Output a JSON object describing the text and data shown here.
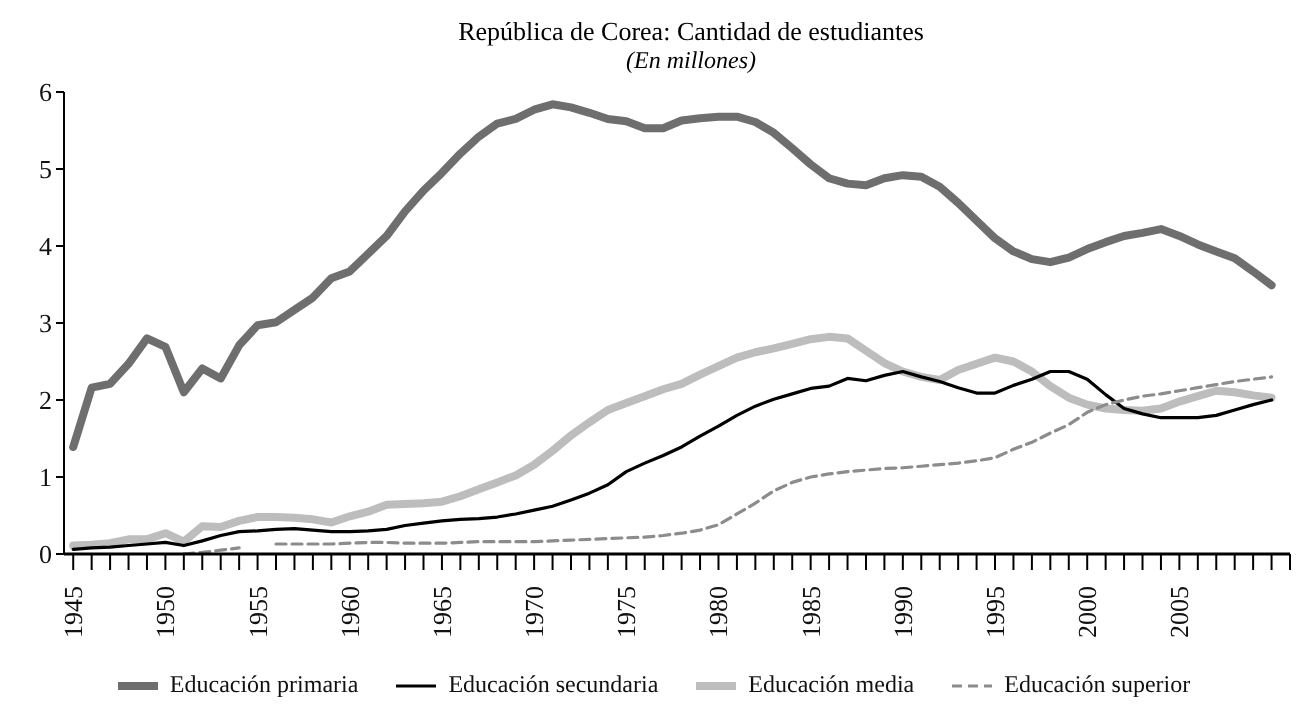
{
  "chart_data": {
    "type": "line",
    "title": "República de Corea: Cantidad de estudiantes",
    "subtitle": "(En millones)",
    "x": [
      1945,
      1946,
      1947,
      1948,
      1949,
      1950,
      1951,
      1952,
      1953,
      1954,
      1955,
      1956,
      1957,
      1958,
      1959,
      1960,
      1961,
      1962,
      1963,
      1964,
      1965,
      1966,
      1967,
      1968,
      1969,
      1970,
      1971,
      1972,
      1973,
      1974,
      1975,
      1976,
      1977,
      1978,
      1979,
      1980,
      1981,
      1982,
      1983,
      1984,
      1985,
      1986,
      1987,
      1988,
      1989,
      1990,
      1991,
      1992,
      1993,
      1994,
      1995,
      1996,
      1997,
      1998,
      1999,
      2000,
      2001,
      2002,
      2003,
      2004,
      2005,
      2006,
      2007,
      2008,
      2009,
      2010
    ],
    "series": [
      {
        "name": "Educación primaria",
        "color": "#6e6e6e",
        "line_style": "solid",
        "values": [
          1.39,
          2.16,
          2.21,
          2.47,
          2.8,
          2.69,
          2.1,
          2.41,
          2.28,
          2.71,
          2.97,
          3.01,
          3.17,
          3.33,
          3.58,
          3.67,
          3.9,
          4.13,
          4.45,
          4.72,
          4.95,
          5.2,
          5.42,
          5.59,
          5.65,
          5.77,
          5.84,
          5.8,
          5.73,
          5.65,
          5.62,
          5.53,
          5.53,
          5.63,
          5.66,
          5.68,
          5.68,
          5.61,
          5.47,
          5.27,
          5.06,
          4.88,
          4.81,
          4.79,
          4.88,
          4.92,
          4.9,
          4.77,
          4.56,
          4.33,
          4.1,
          3.93,
          3.83,
          3.79,
          3.85,
          3.96,
          4.05,
          4.13,
          4.17,
          4.22,
          4.13,
          4.02,
          3.93,
          3.84,
          3.67,
          3.49
        ]
      },
      {
        "name": "Educación secundaria",
        "color": "#000000",
        "line_style": "solid",
        "values": [
          0.06,
          0.08,
          0.09,
          0.11,
          0.13,
          0.15,
          0.11,
          0.17,
          0.24,
          0.29,
          0.3,
          0.32,
          0.33,
          0.31,
          0.29,
          0.29,
          0.3,
          0.32,
          0.37,
          0.4,
          0.43,
          0.45,
          0.46,
          0.48,
          0.52,
          0.57,
          0.62,
          0.7,
          0.79,
          0.9,
          1.07,
          1.18,
          1.28,
          1.39,
          1.53,
          1.66,
          1.8,
          1.92,
          2.01,
          2.08,
          2.15,
          2.18,
          2.28,
          2.25,
          2.32,
          2.37,
          2.3,
          2.24,
          2.16,
          2.09,
          2.09,
          2.19,
          2.27,
          2.37,
          2.37,
          2.27,
          2.07,
          1.89,
          1.82,
          1.77,
          1.77,
          1.77,
          1.8,
          1.87,
          1.94,
          2.0
        ]
      },
      {
        "name": "Educación media",
        "color": "#bdbdbd",
        "line_style": "solid",
        "values": [
          0.11,
          0.12,
          0.14,
          0.19,
          0.19,
          0.27,
          0.16,
          0.36,
          0.35,
          0.43,
          0.48,
          0.48,
          0.47,
          0.45,
          0.41,
          0.49,
          0.55,
          0.64,
          0.65,
          0.66,
          0.68,
          0.75,
          0.84,
          0.93,
          1.02,
          1.16,
          1.34,
          1.54,
          1.71,
          1.87,
          1.96,
          2.05,
          2.14,
          2.21,
          2.33,
          2.44,
          2.55,
          2.62,
          2.67,
          2.73,
          2.79,
          2.82,
          2.8,
          2.64,
          2.48,
          2.37,
          2.3,
          2.26,
          2.39,
          2.47,
          2.55,
          2.5,
          2.37,
          2.18,
          2.03,
          1.94,
          1.89,
          1.87,
          1.86,
          1.89,
          1.98,
          2.05,
          2.12,
          2.1,
          2.06,
          2.03
        ]
      },
      {
        "name": "Educación superior",
        "color": "#8c8c8c",
        "line_style": "dashed",
        "values": [
          null,
          null,
          null,
          null,
          null,
          null,
          0.0,
          0.02,
          0.05,
          0.08,
          null,
          0.13,
          0.13,
          0.13,
          0.13,
          0.14,
          0.15,
          0.15,
          0.14,
          0.14,
          0.14,
          0.15,
          0.16,
          0.16,
          0.16,
          0.16,
          0.17,
          0.18,
          0.19,
          0.2,
          0.21,
          0.22,
          0.24,
          0.27,
          0.31,
          0.38,
          0.52,
          0.66,
          0.82,
          0.93,
          1.0,
          1.04,
          1.07,
          1.09,
          1.11,
          1.12,
          1.14,
          1.16,
          1.18,
          1.21,
          1.25,
          1.36,
          1.45,
          1.57,
          1.68,
          1.84,
          1.94,
          2.0,
          2.05,
          2.08,
          2.12,
          2.16,
          2.2,
          2.24,
          2.27,
          2.3
        ]
      }
    ],
    "xlim": [
      1944.5,
      2011
    ],
    "xticks": [
      1945,
      {
        "value": 1946,
        "label": null
      },
      {
        "value": 1947,
        "label": null
      },
      {
        "value": 1948,
        "label": null
      },
      {
        "value": 1949,
        "label": null
      },
      1950,
      {
        "value": 1951,
        "label": null
      },
      {
        "value": 1952,
        "label": null
      },
      {
        "value": 1953,
        "label": null
      },
      {
        "value": 1954,
        "label": null
      },
      1955,
      {
        "value": 1956,
        "label": null
      },
      {
        "value": 1957,
        "label": null
      },
      {
        "value": 1958,
        "label": null
      },
      {
        "value": 1959,
        "label": null
      },
      1960,
      {
        "value": 1961,
        "label": null
      },
      {
        "value": 1962,
        "label": null
      },
      {
        "value": 1963,
        "label": null
      },
      {
        "value": 1964,
        "label": null
      },
      1965,
      {
        "value": 1966,
        "label": null
      },
      {
        "value": 1967,
        "label": null
      },
      {
        "value": 1968,
        "label": null
      },
      {
        "value": 1969,
        "label": null
      },
      1970,
      {
        "value": 1971,
        "label": null
      },
      {
        "value": 1972,
        "label": null
      },
      {
        "value": 1973,
        "label": null
      },
      {
        "value": 1974,
        "label": null
      },
      1975,
      {
        "value": 1976,
        "label": null
      },
      {
        "value": 1977,
        "label": null
      },
      {
        "value": 1978,
        "label": null
      },
      {
        "value": 1979,
        "label": null
      },
      1980,
      {
        "value": 1981,
        "label": null
      },
      {
        "value": 1982,
        "label": null
      },
      {
        "value": 1983,
        "label": null
      },
      {
        "value": 1984,
        "label": null
      },
      1985,
      {
        "value": 1986,
        "label": null
      },
      {
        "value": 1987,
        "label": null
      },
      {
        "value": 1988,
        "label": null
      },
      {
        "value": 1989,
        "label": null
      },
      1990,
      {
        "value": 1991,
        "label": null
      },
      {
        "value": 1992,
        "label": null
      },
      {
        "value": 1993,
        "label": null
      },
      {
        "value": 1994,
        "label": null
      },
      1995,
      {
        "value": 1996,
        "label": null
      },
      {
        "value": 1997,
        "label": null
      },
      {
        "value": 1998,
        "label": null
      },
      {
        "value": 1999,
        "label": null
      },
      2000,
      {
        "value": 2001,
        "label": null
      },
      {
        "value": 2002,
        "label": null
      },
      {
        "value": 2003,
        "label": null
      },
      {
        "value": 2004,
        "label": null
      },
      2005,
      {
        "value": 2006,
        "label": null
      },
      {
        "value": 2007,
        "label": null
      },
      {
        "value": 2008,
        "label": null
      },
      {
        "value": 2009,
        "label": null
      },
      {
        "value": 2010,
        "label": null
      },
      {
        "value": 2011,
        "label": null
      }
    ],
    "ylim": [
      0,
      6
    ],
    "yticks": [
      0,
      1,
      2,
      3,
      4,
      5,
      6
    ],
    "grid": false,
    "legend": "bottom",
    "marker": "none"
  }
}
